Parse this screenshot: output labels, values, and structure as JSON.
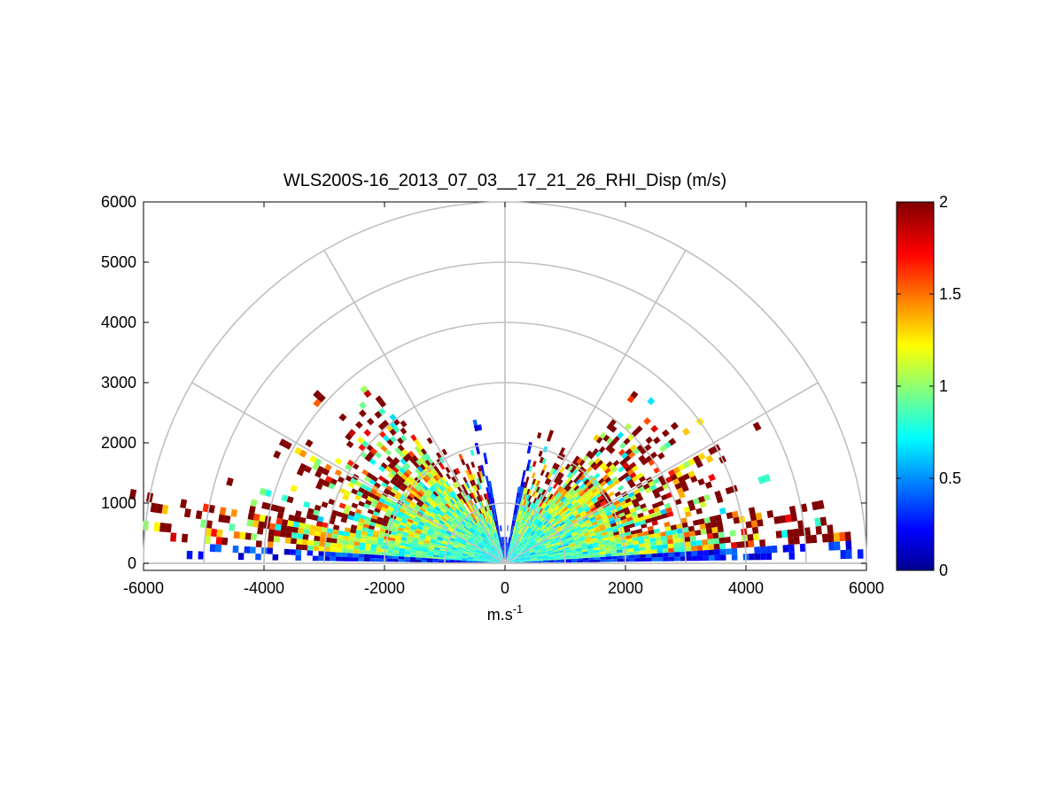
{
  "chart_data": {
    "type": "heatmap",
    "title": "WLS200S-16_2013_07_03__17_21_26_RHI_Disp (m/s)",
    "xlabel": "m.s",
    "xlabel_superscript": "-1",
    "ylabel": "",
    "xlim": [
      -6000,
      6000
    ],
    "ylim": [
      0,
      6000
    ],
    "x_ticks": [
      "-6000",
      "-4000",
      "-2000",
      "0",
      "2000",
      "4000",
      "6000"
    ],
    "y_ticks": [
      "0",
      "1000",
      "2000",
      "3000",
      "4000",
      "5000",
      "6000"
    ],
    "polar_grid": {
      "ring_ranges": [
        1000,
        2000,
        3000,
        4000,
        5000,
        6000
      ],
      "spoke_angles_deg": [
        0,
        30,
        60,
        90,
        120,
        150,
        180
      ]
    },
    "colorbar": {
      "colormap": "jet",
      "clim": [
        0,
        2
      ],
      "ticks": [
        "0",
        "0.5",
        "1",
        "1.5",
        "2"
      ]
    },
    "scan": {
      "elevation_range_deg": [
        0,
        180
      ],
      "max_range": 6000,
      "notes_visible": "values saturate at 2 (dark red) in upper sectors; blue (near 0) along low elevations and near vertical"
    },
    "colors": {
      "grid": "#c0c0c0",
      "axis": "#000000"
    }
  }
}
